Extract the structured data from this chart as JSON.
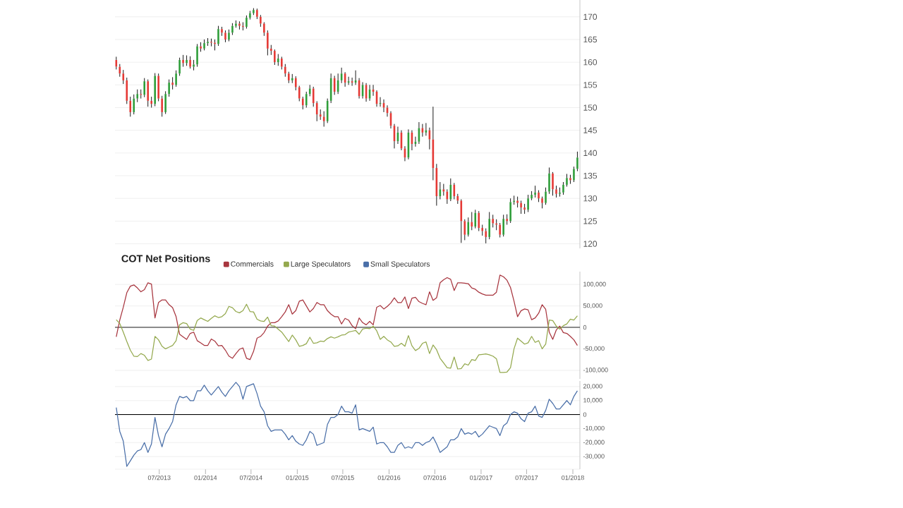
{
  "chart_data": [
    {
      "type": "candlestick",
      "x": [
        "2013-01-11",
        "2013-01-25",
        "2013-02-08",
        "2013-02-22",
        "2013-03-08",
        "2013-03-22",
        "2013-04-05",
        "2013-04-19",
        "2013-05-03",
        "2013-05-17",
        "2013-05-31",
        "2013-06-14",
        "2013-06-28",
        "2013-07-12",
        "2013-07-26",
        "2013-08-09",
        "2013-08-23",
        "2013-09-06",
        "2013-09-20",
        "2013-10-04",
        "2013-10-18",
        "2013-11-01",
        "2013-11-15",
        "2013-11-29",
        "2013-12-13",
        "2013-12-27",
        "2014-01-10",
        "2014-01-24",
        "2014-02-07",
        "2014-02-21",
        "2014-03-07",
        "2014-03-21",
        "2014-04-04",
        "2014-04-18",
        "2014-05-02",
        "2014-05-16",
        "2014-05-30",
        "2014-06-13",
        "2014-06-27",
        "2014-07-11",
        "2014-07-25",
        "2014-08-08",
        "2014-08-22",
        "2014-09-05",
        "2014-09-19",
        "2014-10-03",
        "2014-10-17",
        "2014-10-31",
        "2014-11-14",
        "2014-11-28",
        "2014-12-12",
        "2014-12-26",
        "2015-01-09",
        "2015-01-23",
        "2015-02-06",
        "2015-02-20",
        "2015-03-06",
        "2015-03-20",
        "2015-04-03",
        "2015-04-17",
        "2015-05-01",
        "2015-05-15",
        "2015-05-29",
        "2015-06-12",
        "2015-06-26",
        "2015-07-10",
        "2015-07-24",
        "2015-08-07",
        "2015-08-21",
        "2015-09-04",
        "2015-09-18",
        "2015-10-02",
        "2015-10-16",
        "2015-10-30",
        "2015-11-13",
        "2015-11-27",
        "2015-12-11",
        "2015-12-25",
        "2016-01-08",
        "2016-01-22",
        "2016-02-05",
        "2016-02-19",
        "2016-03-04",
        "2016-03-18",
        "2016-04-01",
        "2016-04-15",
        "2016-04-29",
        "2016-05-13",
        "2016-05-27",
        "2016-06-10",
        "2016-06-24",
        "2016-07-08",
        "2016-07-22",
        "2016-08-05",
        "2016-08-19",
        "2016-09-02",
        "2016-09-16",
        "2016-09-30",
        "2016-10-14",
        "2016-10-28",
        "2016-11-11",
        "2016-11-25",
        "2016-12-09",
        "2016-12-23",
        "2017-01-06",
        "2017-01-20",
        "2017-02-03",
        "2017-02-17",
        "2017-03-03",
        "2017-03-17",
        "2017-03-31",
        "2017-04-14",
        "2017-04-28",
        "2017-05-12",
        "2017-05-26",
        "2017-06-09",
        "2017-06-23",
        "2017-07-07",
        "2017-07-21",
        "2017-08-04",
        "2017-08-18",
        "2017-09-01",
        "2017-09-15",
        "2017-09-29",
        "2017-10-13",
        "2017-10-27",
        "2017-11-10",
        "2017-11-24",
        "2017-12-08",
        "2017-12-22",
        "2018-01-05",
        "2018-01-19"
      ],
      "ohlc": [
        [
          160.5,
          161.2,
          158.4,
          159.0
        ],
        [
          159.0,
          159.6,
          156.8,
          157.5
        ],
        [
          157.5,
          158.3,
          155.2,
          156.0
        ],
        [
          156.0,
          156.6,
          150.8,
          151.5
        ],
        [
          151.5,
          152.4,
          148.0,
          149.0
        ],
        [
          149.0,
          152.9,
          148.5,
          152.0
        ],
        [
          152.0,
          154.0,
          151.2,
          153.0
        ],
        [
          153.0,
          154.0,
          152.0,
          152.8
        ],
        [
          152.8,
          156.5,
          152.3,
          155.8
        ],
        [
          155.8,
          156.2,
          150.2,
          151.5
        ],
        [
          151.5,
          152.4,
          150.0,
          150.8
        ],
        [
          150.8,
          157.6,
          150.3,
          157.0
        ],
        [
          157.0,
          157.5,
          151.4,
          152.0
        ],
        [
          152.0,
          152.6,
          148.0,
          149.0
        ],
        [
          149.0,
          153.6,
          148.6,
          153.0
        ],
        [
          153.0,
          156.2,
          152.4,
          155.5
        ],
        [
          155.5,
          156.7,
          154.0,
          155.0
        ],
        [
          155.0,
          158.2,
          154.6,
          157.5
        ],
        [
          157.5,
          161.0,
          157.0,
          160.5
        ],
        [
          160.5,
          161.6,
          159.0,
          159.8
        ],
        [
          159.8,
          161.5,
          159.2,
          160.5
        ],
        [
          160.5,
          161.3,
          158.6,
          159.0
        ],
        [
          159.0,
          160.5,
          158.2,
          159.5
        ],
        [
          159.5,
          164.0,
          159.0,
          163.5
        ],
        [
          163.5,
          164.4,
          162.3,
          163.0
        ],
        [
          163.0,
          165.0,
          162.6,
          164.2
        ],
        [
          164.2,
          165.3,
          163.6,
          164.5
        ],
        [
          164.5,
          165.2,
          163.5,
          164.3
        ],
        [
          164.3,
          165.0,
          162.6,
          164.0
        ],
        [
          164.0,
          168.0,
          163.6,
          167.3
        ],
        [
          167.3,
          167.8,
          165.8,
          166.5
        ],
        [
          166.5,
          167.0,
          164.4,
          165.0
        ],
        [
          165.0,
          167.2,
          164.6,
          166.5
        ],
        [
          166.5,
          168.6,
          166.0,
          168.0
        ],
        [
          168.0,
          169.2,
          167.6,
          168.5
        ],
        [
          168.5,
          169.0,
          167.2,
          168.0
        ],
        [
          168.0,
          168.8,
          167.0,
          167.8
        ],
        [
          167.8,
          170.3,
          167.4,
          169.8
        ],
        [
          169.8,
          171.3,
          169.4,
          170.8
        ],
        [
          170.8,
          171.9,
          170.4,
          171.5
        ],
        [
          171.5,
          171.8,
          169.5,
          170.0
        ],
        [
          170.0,
          170.4,
          167.8,
          168.5
        ],
        [
          168.5,
          168.8,
          165.8,
          166.5
        ],
        [
          166.5,
          167.0,
          161.5,
          163.0
        ],
        [
          163.0,
          163.8,
          161.6,
          162.5
        ],
        [
          162.5,
          162.8,
          159.4,
          160.0
        ],
        [
          160.0,
          161.8,
          159.2,
          160.8
        ],
        [
          160.8,
          161.2,
          158.4,
          159.0
        ],
        [
          159.0,
          159.6,
          156.8,
          157.5
        ],
        [
          157.5,
          157.9,
          155.4,
          156.0
        ],
        [
          156.0,
          157.4,
          155.4,
          156.5
        ],
        [
          156.5,
          156.9,
          153.8,
          154.5
        ],
        [
          154.5,
          154.8,
          151.4,
          152.0
        ],
        [
          152.0,
          152.4,
          149.6,
          150.5
        ],
        [
          150.5,
          153.5,
          150.0,
          153.0
        ],
        [
          153.0,
          155.0,
          152.5,
          154.2
        ],
        [
          154.2,
          154.6,
          150.2,
          151.0
        ],
        [
          151.0,
          151.4,
          147.0,
          148.5
        ],
        [
          148.5,
          149.6,
          147.3,
          148.0
        ],
        [
          148.0,
          149.2,
          145.8,
          147.0
        ],
        [
          147.0,
          152.0,
          146.6,
          151.5
        ],
        [
          151.5,
          157.5,
          151.0,
          156.5
        ],
        [
          156.5,
          157.0,
          152.8,
          153.5
        ],
        [
          153.5,
          157.5,
          153.0,
          156.0
        ],
        [
          156.0,
          158.8,
          155.4,
          157.5
        ],
        [
          157.5,
          157.8,
          154.6,
          155.5
        ],
        [
          155.5,
          156.8,
          155.0,
          155.8
        ],
        [
          155.8,
          156.6,
          154.8,
          155.5
        ],
        [
          155.5,
          158.2,
          155.0,
          156.0
        ],
        [
          156.0,
          156.5,
          152.0,
          152.5
        ],
        [
          152.5,
          155.6,
          152.0,
          155.0
        ],
        [
          155.0,
          155.4,
          151.3,
          152.0
        ],
        [
          152.0,
          155.0,
          151.5,
          154.0
        ],
        [
          154.0,
          155.0,
          152.6,
          153.5
        ],
        [
          153.5,
          153.8,
          150.2,
          150.8
        ],
        [
          150.8,
          152.3,
          150.2,
          151.0
        ],
        [
          151.0,
          151.8,
          149.0,
          150.0
        ],
        [
          150.0,
          150.5,
          148.0,
          148.8
        ],
        [
          148.8,
          149.2,
          145.4,
          146.0
        ],
        [
          146.0,
          146.4,
          141.0,
          142.6
        ],
        [
          142.6,
          145.8,
          142.0,
          144.5
        ],
        [
          144.5,
          145.0,
          140.6,
          141.0
        ],
        [
          141.0,
          141.5,
          138.2,
          139.0
        ],
        [
          139.0,
          145.2,
          138.6,
          144.5
        ],
        [
          144.5,
          145.0,
          140.6,
          142.0
        ],
        [
          142.0,
          143.6,
          141.4,
          142.5
        ],
        [
          142.5,
          146.8,
          142.0,
          145.5
        ],
        [
          145.5,
          146.4,
          143.6,
          144.5
        ],
        [
          144.5,
          146.6,
          143.8,
          145.0
        ],
        [
          145.0,
          145.6,
          140.8,
          143.0
        ],
        [
          143.0,
          150.2,
          134.0,
          136.7
        ],
        [
          136.7,
          137.6,
          128.4,
          130.5
        ],
        [
          130.5,
          133.6,
          129.8,
          132.0
        ],
        [
          132.0,
          133.2,
          130.6,
          131.5
        ],
        [
          131.5,
          132.0,
          128.8,
          129.8
        ],
        [
          129.8,
          134.4,
          129.4,
          133.0
        ],
        [
          133.0,
          133.4,
          129.8,
          130.5
        ],
        [
          130.5,
          131.0,
          128.8,
          129.5
        ],
        [
          129.5,
          129.8,
          120.2,
          125.0
        ],
        [
          125.0,
          125.4,
          120.8,
          122.0
        ],
        [
          122.0,
          125.8,
          121.6,
          124.8
        ],
        [
          124.8,
          127.0,
          123.0,
          123.8
        ],
        [
          123.8,
          127.5,
          123.4,
          126.8
        ],
        [
          126.8,
          127.2,
          122.8,
          123.5
        ],
        [
          123.5,
          124.2,
          121.8,
          122.8
        ],
        [
          122.8,
          123.4,
          120.1,
          121.5
        ],
        [
          121.5,
          127.0,
          121.0,
          125.5
        ],
        [
          125.5,
          126.4,
          123.6,
          124.5
        ],
        [
          124.5,
          125.4,
          123.0,
          124.2
        ],
        [
          124.2,
          124.6,
          121.4,
          122.0
        ],
        [
          122.0,
          126.4,
          121.6,
          125.5
        ],
        [
          125.5,
          126.5,
          124.2,
          125.0
        ],
        [
          125.0,
          130.0,
          124.6,
          129.2
        ],
        [
          129.2,
          130.6,
          128.6,
          129.5
        ],
        [
          129.5,
          130.4,
          128.0,
          129.0
        ],
        [
          129.0,
          129.5,
          126.6,
          128.0
        ],
        [
          128.0,
          128.8,
          126.6,
          127.5
        ],
        [
          127.5,
          130.8,
          127.0,
          130.0
        ],
        [
          130.0,
          131.6,
          129.6,
          130.8
        ],
        [
          130.8,
          132.8,
          130.2,
          131.3
        ],
        [
          131.3,
          131.8,
          129.2,
          130.0
        ],
        [
          130.0,
          130.4,
          127.8,
          129.0
        ],
        [
          129.0,
          132.4,
          128.6,
          131.5
        ],
        [
          131.5,
          136.8,
          131.0,
          135.5
        ],
        [
          135.5,
          135.8,
          130.6,
          132.0
        ],
        [
          132.0,
          132.8,
          130.2,
          131.0
        ],
        [
          131.0,
          132.4,
          130.4,
          131.3
        ],
        [
          131.3,
          133.6,
          130.8,
          133.0
        ],
        [
          133.0,
          135.4,
          132.6,
          134.5
        ],
        [
          134.5,
          135.2,
          133.2,
          134.0
        ],
        [
          134.0,
          137.0,
          133.6,
          136.5
        ],
        [
          136.5,
          140.3,
          136.0,
          139.0
        ]
      ],
      "xlim": [
        "2013-01-06",
        "2018-01-29"
      ],
      "ylim": [
        119,
        173.7
      ],
      "yticks": [
        120,
        125,
        130,
        135,
        140,
        145,
        150,
        155,
        160,
        165,
        170
      ],
      "grid": "y",
      "tick_labels": "y"
    },
    {
      "type": "line",
      "title": "COT Net Positions",
      "x": [
        "2013-01-11",
        "2013-01-25",
        "2013-02-08",
        "2013-02-22",
        "2013-03-08",
        "2013-03-22",
        "2013-04-05",
        "2013-04-19",
        "2013-05-03",
        "2013-05-17",
        "2013-05-31",
        "2013-06-14",
        "2013-06-28",
        "2013-07-12",
        "2013-07-26",
        "2013-08-09",
        "2013-08-23",
        "2013-09-06",
        "2013-09-20",
        "2013-10-04",
        "2013-10-18",
        "2013-11-01",
        "2013-11-15",
        "2013-11-29",
        "2013-12-13",
        "2013-12-27",
        "2014-01-10",
        "2014-01-24",
        "2014-02-07",
        "2014-02-21",
        "2014-03-07",
        "2014-03-21",
        "2014-04-04",
        "2014-04-18",
        "2014-05-02",
        "2014-05-16",
        "2014-05-30",
        "2014-06-13",
        "2014-06-27",
        "2014-07-11",
        "2014-07-25",
        "2014-08-08",
        "2014-08-22",
        "2014-09-05",
        "2014-09-19",
        "2014-10-03",
        "2014-10-17",
        "2014-10-31",
        "2014-11-14",
        "2014-11-28",
        "2014-12-12",
        "2014-12-26",
        "2015-01-09",
        "2015-01-23",
        "2015-02-06",
        "2015-02-20",
        "2015-03-06",
        "2015-03-20",
        "2015-04-03",
        "2015-04-17",
        "2015-05-01",
        "2015-05-15",
        "2015-05-29",
        "2015-06-12",
        "2015-06-26",
        "2015-07-10",
        "2015-07-24",
        "2015-08-07",
        "2015-08-21",
        "2015-09-04",
        "2015-09-18",
        "2015-10-02",
        "2015-10-16",
        "2015-10-30",
        "2015-11-13",
        "2015-11-27",
        "2015-12-11",
        "2015-12-25",
        "2016-01-08",
        "2016-01-22",
        "2016-02-05",
        "2016-02-19",
        "2016-03-04",
        "2016-03-18",
        "2016-04-01",
        "2016-04-15",
        "2016-04-29",
        "2016-05-13",
        "2016-05-27",
        "2016-06-10",
        "2016-06-24",
        "2016-07-08",
        "2016-07-22",
        "2016-08-05",
        "2016-08-19",
        "2016-09-02",
        "2016-09-16",
        "2016-09-30",
        "2016-10-14",
        "2016-10-28",
        "2016-11-11",
        "2016-11-25",
        "2016-12-09",
        "2016-12-23",
        "2017-01-06",
        "2017-01-20",
        "2017-02-03",
        "2017-02-17",
        "2017-03-03",
        "2017-03-17",
        "2017-03-31",
        "2017-04-14",
        "2017-04-28",
        "2017-05-12",
        "2017-05-26",
        "2017-06-09",
        "2017-06-23",
        "2017-07-07",
        "2017-07-21",
        "2017-08-04",
        "2017-08-18",
        "2017-09-01",
        "2017-09-15",
        "2017-09-29",
        "2017-10-13",
        "2017-10-27",
        "2017-11-10",
        "2017-11-24",
        "2017-12-08",
        "2017-12-22",
        "2018-01-05",
        "2018-01-19"
      ],
      "series": [
        {
          "name": "Commercials",
          "color": "#a8363f",
          "values": [
            -22000,
            17000,
            47000,
            81000,
            96000,
            99000,
            92000,
            83000,
            88000,
            104000,
            101000,
            22000,
            58000,
            64000,
            64000,
            53000,
            46000,
            25000,
            -16000,
            -22000,
            -28000,
            -14000,
            -11000,
            -31000,
            -36000,
            -42000,
            -42000,
            -27000,
            -32000,
            -43000,
            -42000,
            -53000,
            -67000,
            -72000,
            -61000,
            -51000,
            -48000,
            -72000,
            -75000,
            -56000,
            -25000,
            -21000,
            -12000,
            3000,
            11000,
            11000,
            15000,
            25000,
            36000,
            53000,
            31000,
            39000,
            61000,
            64000,
            50000,
            36000,
            44000,
            58000,
            53000,
            53000,
            39000,
            31000,
            25000,
            25000,
            8000,
            21000,
            17000,
            4000,
            -3000,
            22000,
            11000,
            6000,
            14000,
            6000,
            47000,
            51000,
            43000,
            49000,
            57000,
            69000,
            58000,
            58000,
            71000,
            44000,
            68000,
            70000,
            60000,
            56000,
            53000,
            83000,
            63000,
            69000,
            104000,
            111000,
            116000,
            112000,
            86000,
            104000,
            104000,
            103000,
            102000,
            92000,
            89000,
            82000,
            78000,
            75000,
            75000,
            75000,
            82000,
            122000,
            118000,
            110000,
            93000,
            61000,
            25000,
            39000,
            43000,
            41000,
            18000,
            22000,
            33000,
            53000,
            42000,
            -11000,
            -28000,
            -6000,
            3000,
            -12000,
            -14000,
            -21000,
            -29000,
            -42000
          ]
        },
        {
          "name": "Large Speculators",
          "color": "#94a94e",
          "values": [
            18000,
            9000,
            -11000,
            -33000,
            -53000,
            -67000,
            -68000,
            -61000,
            -65000,
            -77000,
            -74000,
            -21000,
            -29000,
            -44000,
            -50000,
            -46000,
            -42000,
            -31000,
            6000,
            11000,
            9000,
            -4000,
            -7000,
            16000,
            22000,
            18000,
            14000,
            21000,
            27000,
            23000,
            25000,
            32000,
            49000,
            46000,
            37000,
            34000,
            39000,
            54000,
            37000,
            36000,
            19000,
            15000,
            14000,
            24000,
            4000,
            3000,
            -4000,
            -11000,
            -22000,
            -33000,
            -18000,
            -29000,
            -44000,
            -42000,
            -38000,
            -23000,
            -37000,
            -36000,
            -32000,
            -33000,
            -26000,
            -22000,
            -25000,
            -22000,
            -18000,
            -17000,
            -11000,
            -9000,
            -7000,
            -16000,
            -4000,
            -2000,
            -3000,
            3000,
            -8000,
            -28000,
            -21000,
            -29000,
            -34000,
            -44000,
            -43000,
            -37000,
            -44000,
            -19000,
            -43000,
            -54000,
            -49000,
            -37000,
            -34000,
            -61000,
            -41000,
            -52000,
            -72000,
            -83000,
            -94000,
            -95000,
            -69000,
            -97000,
            -96000,
            -85000,
            -88000,
            -75000,
            -77000,
            -64000,
            -63000,
            -62000,
            -64000,
            -67000,
            -73000,
            -105000,
            -105000,
            -104000,
            -94000,
            -50000,
            -25000,
            -32000,
            -39000,
            -36000,
            -21000,
            -35000,
            -31000,
            -50000,
            -39000,
            17000,
            16000,
            3000,
            -4000,
            4000,
            8000,
            19000,
            17000,
            27000
          ]
        }
      ],
      "xlim": [
        "2013-01-06",
        "2018-01-29"
      ],
      "ylim": [
        -120000,
        130000
      ],
      "yticks": [
        {
          "value": -100000,
          "label": "-100,000"
        },
        {
          "value": -50000,
          "label": "-50,000"
        },
        0,
        {
          "value": 50000,
          "label": "50,000"
        },
        {
          "value": 100000,
          "label": "100,000"
        }
      ],
      "grid": "y",
      "legend": "top",
      "tick_labels": "y",
      "ref_lines": [
        {
          "axis": "y",
          "value": 0,
          "color": "#000000"
        }
      ]
    },
    {
      "type": "line",
      "x": [
        "2013-01-11",
        "2013-01-25",
        "2013-02-08",
        "2013-02-22",
        "2013-03-08",
        "2013-03-22",
        "2013-04-05",
        "2013-04-19",
        "2013-05-03",
        "2013-05-17",
        "2013-05-31",
        "2013-06-14",
        "2013-06-28",
        "2013-07-12",
        "2013-07-26",
        "2013-08-09",
        "2013-08-23",
        "2013-09-06",
        "2013-09-20",
        "2013-10-04",
        "2013-10-18",
        "2013-11-01",
        "2013-11-15",
        "2013-11-29",
        "2013-12-13",
        "2013-12-27",
        "2014-01-10",
        "2014-01-24",
        "2014-02-07",
        "2014-02-21",
        "2014-03-07",
        "2014-03-21",
        "2014-04-04",
        "2014-04-18",
        "2014-05-02",
        "2014-05-16",
        "2014-05-30",
        "2014-06-13",
        "2014-06-27",
        "2014-07-11",
        "2014-07-25",
        "2014-08-08",
        "2014-08-22",
        "2014-09-05",
        "2014-09-19",
        "2014-10-03",
        "2014-10-17",
        "2014-10-31",
        "2014-11-14",
        "2014-11-28",
        "2014-12-12",
        "2014-12-26",
        "2015-01-09",
        "2015-01-23",
        "2015-02-06",
        "2015-02-20",
        "2015-03-06",
        "2015-03-20",
        "2015-04-03",
        "2015-04-17",
        "2015-05-01",
        "2015-05-15",
        "2015-05-29",
        "2015-06-12",
        "2015-06-26",
        "2015-07-10",
        "2015-07-24",
        "2015-08-07",
        "2015-08-21",
        "2015-09-04",
        "2015-09-18",
        "2015-10-02",
        "2015-10-16",
        "2015-10-30",
        "2015-11-13",
        "2015-11-27",
        "2015-12-11",
        "2015-12-25",
        "2016-01-08",
        "2016-01-22",
        "2016-02-05",
        "2016-02-19",
        "2016-03-04",
        "2016-03-18",
        "2016-04-01",
        "2016-04-15",
        "2016-04-29",
        "2016-05-13",
        "2016-05-27",
        "2016-06-10",
        "2016-06-24",
        "2016-07-08",
        "2016-07-22",
        "2016-08-05",
        "2016-08-19",
        "2016-09-02",
        "2016-09-16",
        "2016-09-30",
        "2016-10-14",
        "2016-10-28",
        "2016-11-11",
        "2016-11-25",
        "2016-12-09",
        "2016-12-23",
        "2017-01-06",
        "2017-01-20",
        "2017-02-03",
        "2017-02-17",
        "2017-03-03",
        "2017-03-17",
        "2017-03-31",
        "2017-04-14",
        "2017-04-28",
        "2017-05-12",
        "2017-05-26",
        "2017-06-09",
        "2017-06-23",
        "2017-07-07",
        "2017-07-21",
        "2017-08-04",
        "2017-08-18",
        "2017-09-01",
        "2017-09-15",
        "2017-09-29",
        "2017-10-13",
        "2017-10-27",
        "2017-11-10",
        "2017-11-24",
        "2017-12-08",
        "2017-12-22",
        "2018-01-05",
        "2018-01-19"
      ],
      "series": [
        {
          "name": "Small Speculators",
          "color": "#4a6fa8",
          "values": [
            5000,
            -12000,
            -19000,
            -37000,
            -33000,
            -29000,
            -26000,
            -25000,
            -20000,
            -27000,
            -21000,
            -2000,
            -15000,
            -23000,
            -14000,
            -10000,
            -5000,
            7000,
            13000,
            12000,
            13000,
            10000,
            10000,
            17000,
            17000,
            21000,
            17000,
            14000,
            17000,
            20000,
            16000,
            13000,
            17000,
            20000,
            23000,
            20000,
            11000,
            20000,
            21000,
            22000,
            15000,
            6000,
            2000,
            -8000,
            -12000,
            -11000,
            -11000,
            -11000,
            -14000,
            -18000,
            -15000,
            -19000,
            -21000,
            -22000,
            -18000,
            -12000,
            -14000,
            -22000,
            -21000,
            -20000,
            -7000,
            -2000,
            -2000,
            0,
            6000,
            2000,
            2000,
            1000,
            7000,
            -11000,
            -10000,
            -11000,
            -12000,
            -9000,
            -21000,
            -20000,
            -20000,
            -23000,
            -27000,
            -27000,
            -22000,
            -20000,
            -24000,
            -23000,
            -24000,
            -20000,
            -20000,
            -22000,
            -20000,
            -19000,
            -16000,
            -21000,
            -27000,
            -25000,
            -23000,
            -18000,
            -18000,
            -16000,
            -10000,
            -14000,
            -13000,
            -14000,
            -12000,
            -16000,
            -14000,
            -11000,
            -8000,
            -9000,
            -10000,
            -15000,
            -8000,
            -6000,
            0,
            2000,
            1000,
            -3000,
            -5000,
            1000,
            2000,
            6000,
            -1000,
            -2000,
            3000,
            11000,
            8000,
            4000,
            4000,
            7000,
            10000,
            7000,
            13000,
            17000
          ]
        }
      ],
      "xlim": [
        "2013-01-06",
        "2018-01-29"
      ],
      "xticks": [
        {
          "value": "2013-07",
          "label": "07/2013"
        },
        {
          "value": "2014-01",
          "label": "01/2014"
        },
        {
          "value": "2014-07",
          "label": "07/2014"
        },
        {
          "value": "2015-01",
          "label": "01/2015"
        },
        {
          "value": "2015-07",
          "label": "07/2015"
        },
        {
          "value": "2016-01",
          "label": "01/2016"
        },
        {
          "value": "2016-07",
          "label": "07/2016"
        },
        {
          "value": "2017-01",
          "label": "01/2017"
        },
        {
          "value": "2017-07",
          "label": "07/2017"
        },
        {
          "value": "2018-01",
          "label": "01/2018"
        }
      ],
      "ylim": [
        -39000,
        24000
      ],
      "yticks": [
        {
          "value": -30000,
          "label": "-30,000"
        },
        {
          "value": -20000,
          "label": "-20,000"
        },
        {
          "value": -10000,
          "label": "-10,000"
        },
        0,
        {
          "value": 10000,
          "label": "10,000"
        },
        {
          "value": 20000,
          "label": "20,000"
        }
      ],
      "grid": "y",
      "legend": "top",
      "ref_lines": [
        {
          "axis": "y",
          "value": 0,
          "color": "#000000"
        }
      ]
    }
  ]
}
